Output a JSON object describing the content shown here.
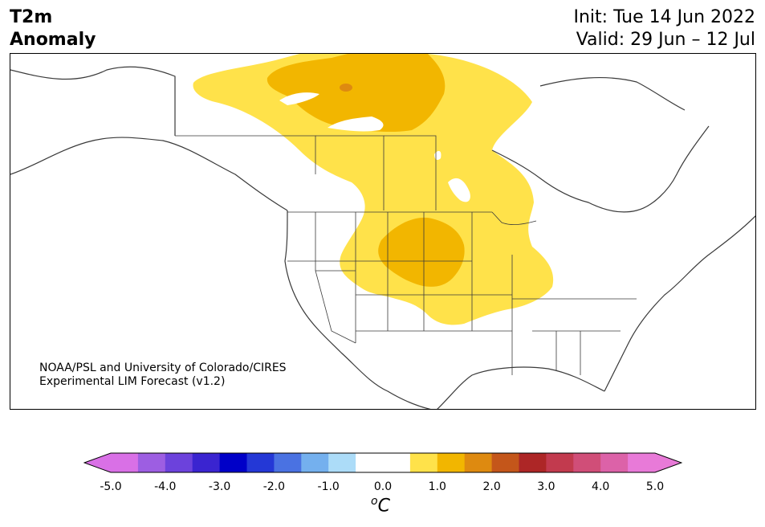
{
  "title": {
    "variable": "T2m",
    "subtitle": "Anomaly"
  },
  "forecast": {
    "init": "Init: Tue 14 Jun 2022",
    "valid": "Valid: 29 Jun – 12 Jul"
  },
  "credit": {
    "line1": "NOAA/PSL and University of Colorado/CIRES",
    "line2": "Experimental LIM Forecast (v1.2)"
  },
  "colorbar": {
    "unit_prefix": "o",
    "unit_symbol": "C",
    "min_color": "#d970e6",
    "max_color": "#e87ad8",
    "colors": [
      "#d970e6",
      "#9d5ee2",
      "#6c42dc",
      "#3a24d0",
      "#0000c8",
      "#2438d6",
      "#4a72e2",
      "#74b0ee",
      "#acdcf8",
      "#ffffff",
      "#ffffff",
      "#ffe24a",
      "#f2b600",
      "#de8a10",
      "#c4561a",
      "#ad2626",
      "#c23a4e",
      "#d04e78",
      "#dc62a8",
      "#e87ad8"
    ],
    "ticks": [
      "-5.0",
      "-4.0",
      "-3.0",
      "-2.0",
      "-1.0",
      "0.0",
      "1.0",
      "2.0",
      "3.0",
      "4.0",
      "5.0"
    ]
  },
  "map": {
    "anomaly_colors": {
      "light": "#ffe24a",
      "medium": "#f2b600",
      "strong": "#de8a10"
    },
    "outline_color": "#3a3a3a"
  }
}
